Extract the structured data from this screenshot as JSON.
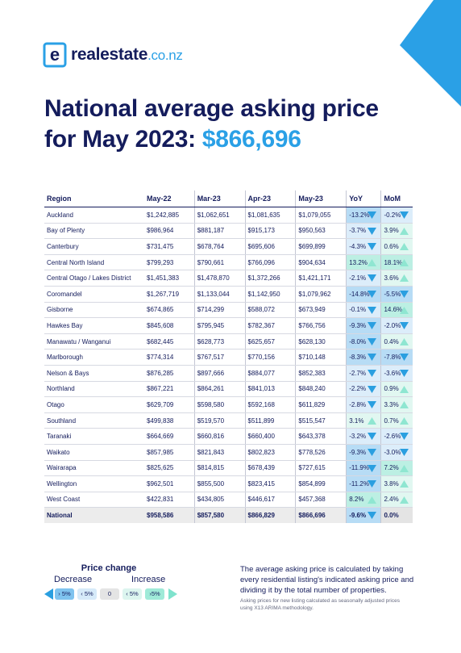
{
  "logo": {
    "brand": "realestate",
    "tld": ".co.nz"
  },
  "title": {
    "line1": "National average asking price",
    "line2": "for May 2023: ",
    "highlight": "$866,696"
  },
  "table": {
    "columns": [
      "Region",
      "May-22",
      "Mar-23",
      "Apr-23",
      "May-23",
      "YoY",
      "MoM"
    ],
    "rows": [
      [
        "Auckland",
        "$1,242,885",
        "$1,062,651",
        "$1,081,635",
        "$1,079,055",
        "-13.2%",
        "-0.2%"
      ],
      [
        "Bay of Plenty",
        "$986,964",
        "$881,187",
        "$915,173",
        "$950,563",
        "-3.7%",
        "3.9%"
      ],
      [
        "Canterbury",
        "$731,475",
        "$678,764",
        "$695,606",
        "$699,899",
        "-4.3%",
        "0.6%"
      ],
      [
        "Central North Island",
        "$799,293",
        "$790,661",
        "$766,096",
        "$904,634",
        "13.2%",
        "18.1%"
      ],
      [
        "Central Otago / Lakes District",
        "$1,451,383",
        "$1,478,870",
        "$1,372,266",
        "$1,421,171",
        "-2.1%",
        "3.6%"
      ],
      [
        "Coromandel",
        "$1,267,719",
        "$1,133,044",
        "$1,142,950",
        "$1,079,962",
        "-14.8%",
        "-5.5%"
      ],
      [
        "Gisborne",
        "$674,865",
        "$714,299",
        "$588,072",
        "$673,949",
        "-0.1%",
        "14.6%"
      ],
      [
        "Hawkes Bay",
        "$845,608",
        "$795,945",
        "$782,367",
        "$766,756",
        "-9.3%",
        "-2.0%"
      ],
      [
        "Manawatu / Wanganui",
        "$682,445",
        "$628,773",
        "$625,657",
        "$628,130",
        "-8.0%",
        "0.4%"
      ],
      [
        "Marlborough",
        "$774,314",
        "$767,517",
        "$770,156",
        "$710,148",
        "-8.3%",
        "-7.8%"
      ],
      [
        "Nelson & Bays",
        "$876,285",
        "$897,666",
        "$884,077",
        "$852,383",
        "-2.7%",
        "-3.6%"
      ],
      [
        "Northland",
        "$867,221",
        "$864,261",
        "$841,013",
        "$848,240",
        "-2.2%",
        "0.9%"
      ],
      [
        "Otago",
        "$629,709",
        "$598,580",
        "$592,168",
        "$611,829",
        "-2.8%",
        "3.3%"
      ],
      [
        "Southland",
        "$499,838",
        "$519,570",
        "$511,899",
        "$515,547",
        "3.1%",
        "0.7%"
      ],
      [
        "Taranaki",
        "$664,669",
        "$660,816",
        "$660,400",
        "$643,378",
        "-3.2%",
        "-2.6%"
      ],
      [
        "Waikato",
        "$857,985",
        "$821,843",
        "$802,823",
        "$778,526",
        "-9.3%",
        "-3.0%"
      ],
      [
        "Wairarapa",
        "$825,625",
        "$814,815",
        "$678,439",
        "$727,615",
        "-11.9%",
        "7.2%"
      ],
      [
        "Wellington",
        "$962,501",
        "$855,500",
        "$823,415",
        "$854,899",
        "-11.2%",
        "3.8%"
      ],
      [
        "West Coast",
        "$422,831",
        "$434,805",
        "$446,617",
        "$457,368",
        "8.2%",
        "2.4%"
      ],
      [
        "National",
        "$958,586",
        "$857,580",
        "$866,829",
        "$866,696",
        "-9.6%",
        "0.0%"
      ]
    ]
  },
  "legend": {
    "title": "Price change",
    "decrease": "Decrease",
    "increase": "Increase",
    "boxes": [
      "› 5%",
      "‹ 5%",
      "0",
      "‹ 5%",
      "›5%"
    ]
  },
  "note": "The average asking price is calculated by taking every residential listing's indicated asking price and dividing it by the total number of properties.",
  "footnote": "Asking prices for new listing calculated as seasonally adjusted prices using X13 ARIMA methodology."
}
